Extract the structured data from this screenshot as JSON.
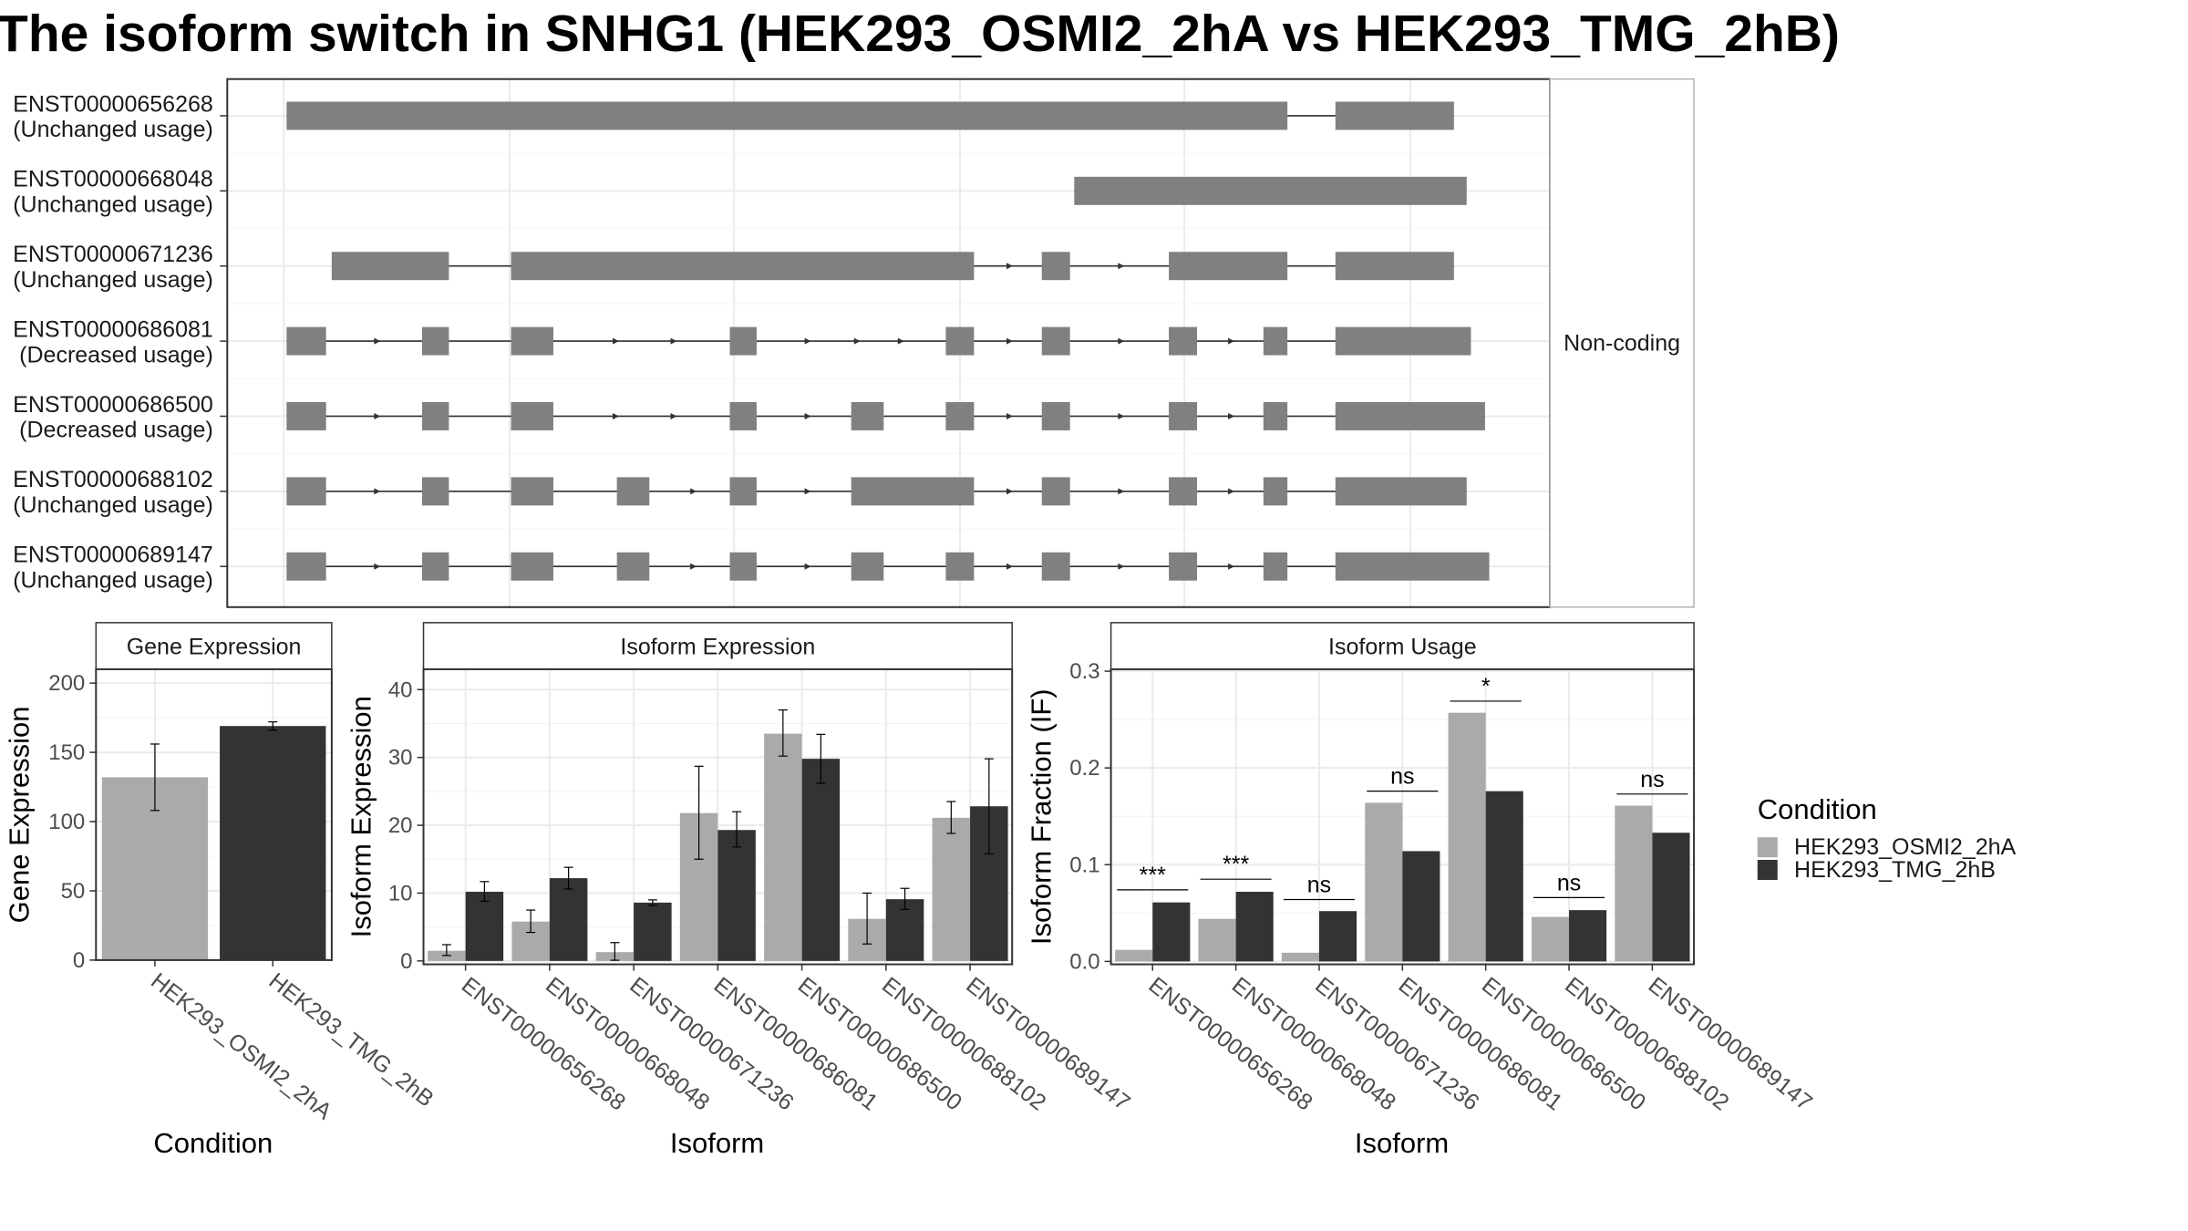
{
  "title": "The isoform switch in SNHG1 (HEK293_OSMI2_2hA vs HEK293_TMG_2hB)",
  "colors": {
    "exon": "#808080",
    "condition_a": "#aaaaaa",
    "condition_b": "#333333",
    "panel_border": "#333333",
    "grid": "#ebebeb",
    "strip_bg": "#ffffff"
  },
  "transcript_panel": {
    "strip_label": "Non-coding",
    "transcripts": [
      {
        "id": "ENST00000656268",
        "usage": "(Unchanged usage)",
        "exons": [
          [
            203,
            912
          ],
          [
            946,
            1030
          ]
        ],
        "arrows": []
      },
      {
        "id": "ENST00000668048",
        "usage": "(Unchanged usage)",
        "exons": [
          [
            761,
            1039
          ]
        ],
        "arrows": []
      },
      {
        "id": "ENST00000671236",
        "usage": "(Unchanged usage)",
        "exons": [
          [
            235,
            318
          ],
          [
            362,
            690
          ],
          [
            738,
            758
          ],
          [
            828,
            912
          ],
          [
            946,
            1030
          ]
        ],
        "arrows": [
          713,
          792
        ]
      },
      {
        "id": "ENST00000686081",
        "usage": "(Decreased usage)",
        "exons": [
          [
            203,
            231
          ],
          [
            299,
            318
          ],
          [
            362,
            392
          ],
          [
            517,
            536
          ],
          [
            670,
            690
          ],
          [
            738,
            758
          ],
          [
            828,
            848
          ],
          [
            895,
            912
          ],
          [
            946,
            1042
          ]
        ],
        "arrows": [
          265,
          434,
          475,
          570,
          605,
          636,
          713,
          792,
          870
        ]
      },
      {
        "id": "ENST00000686500",
        "usage": "(Decreased usage)",
        "exons": [
          [
            203,
            231
          ],
          [
            299,
            318
          ],
          [
            362,
            392
          ],
          [
            517,
            536
          ],
          [
            603,
            626
          ],
          [
            670,
            690
          ],
          [
            738,
            758
          ],
          [
            828,
            848
          ],
          [
            895,
            912
          ],
          [
            946,
            1052
          ]
        ],
        "arrows": [
          265,
          434,
          475,
          570,
          713,
          792,
          870
        ]
      },
      {
        "id": "ENST00000688102",
        "usage": "(Unchanged usage)",
        "exons": [
          [
            203,
            231
          ],
          [
            299,
            318
          ],
          [
            362,
            392
          ],
          [
            437,
            460
          ],
          [
            517,
            536
          ],
          [
            603,
            690
          ],
          [
            738,
            758
          ],
          [
            828,
            848
          ],
          [
            895,
            912
          ],
          [
            946,
            1039
          ]
        ],
        "arrows": [
          265,
          489,
          570,
          713,
          792,
          870
        ]
      },
      {
        "id": "ENST00000689147",
        "usage": "(Unchanged usage)",
        "exons": [
          [
            203,
            231
          ],
          [
            299,
            318
          ],
          [
            362,
            392
          ],
          [
            437,
            460
          ],
          [
            517,
            536
          ],
          [
            603,
            626
          ],
          [
            670,
            690
          ],
          [
            738,
            758
          ],
          [
            828,
            848
          ],
          [
            895,
            912
          ],
          [
            946,
            1055
          ]
        ],
        "arrows": [
          265,
          489,
          570,
          713,
          792,
          870
        ]
      }
    ]
  },
  "chart_data": [
    {
      "type": "bar",
      "strip_title": "Gene Expression",
      "xlabel": "Condition",
      "ylabel": "Gene Expression",
      "ylim": [
        0,
        210
      ],
      "yticks": [
        0,
        50,
        100,
        150,
        200
      ],
      "categories": [
        "HEK293_OSMI2_2hA",
        "HEK293_TMG_2hB"
      ],
      "series": [
        {
          "name": "HEK293_OSMI2_2hA",
          "values": [
            132,
            null
          ],
          "err_low": [
            108,
            null
          ],
          "err_high": [
            156,
            null
          ]
        },
        {
          "name": "HEK293_TMG_2hB",
          "values": [
            null,
            169
          ],
          "err_low": [
            null,
            166
          ],
          "err_high": [
            null,
            172
          ]
        }
      ]
    },
    {
      "type": "bar",
      "strip_title": "Isoform Expression",
      "xlabel": "Isoform",
      "ylabel": "Isoform Expression",
      "ylim": [
        -0.5,
        43
      ],
      "yticks": [
        0,
        10,
        20,
        30,
        40
      ],
      "categories": [
        "ENST00000656268",
        "ENST00000668048",
        "ENST00000671236",
        "ENST00000686081",
        "ENST00000686500",
        "ENST00000688102",
        "ENST00000689147"
      ],
      "series": [
        {
          "name": "HEK293_OSMI2_2hA",
          "values": [
            1.5,
            5.8,
            1.3,
            21.8,
            33.5,
            6.2,
            21.1
          ],
          "err_low": [
            0.8,
            4.2,
            0.1,
            15.0,
            30.2,
            2.5,
            18.8
          ],
          "err_high": [
            2.4,
            7.5,
            2.7,
            28.7,
            37.0,
            10.0,
            23.5
          ]
        },
        {
          "name": "HEK293_TMG_2hB",
          "values": [
            10.2,
            12.2,
            8.6,
            19.3,
            29.8,
            9.1,
            22.8
          ],
          "err_low": [
            8.8,
            10.6,
            8.2,
            16.8,
            26.2,
            7.6,
            15.8
          ],
          "err_high": [
            11.7,
            13.8,
            9.0,
            22.0,
            33.4,
            10.7,
            29.8
          ]
        }
      ]
    },
    {
      "type": "bar",
      "strip_title": "Isoform Usage",
      "xlabel": "Isoform",
      "ylabel": "Isoform Fraction (IF)",
      "ylim": [
        -0.003,
        0.302
      ],
      "yticks": [
        0.0,
        0.1,
        0.2,
        0.3
      ],
      "ytick_labels": [
        "0.0",
        "0.1",
        "0.2",
        "0.3"
      ],
      "categories": [
        "ENST00000656268",
        "ENST00000668048",
        "ENST00000671236",
        "ENST00000686081",
        "ENST00000686500",
        "ENST00000688102",
        "ENST00000689147"
      ],
      "series": [
        {
          "name": "HEK293_OSMI2_2hA",
          "values": [
            0.012,
            0.044,
            0.009,
            0.164,
            0.257,
            0.046,
            0.161
          ]
        },
        {
          "name": "HEK293_TMG_2hB",
          "values": [
            0.061,
            0.072,
            0.052,
            0.114,
            0.176,
            0.053,
            0.133
          ]
        }
      ],
      "significance": [
        {
          "label": "***",
          "y": 0.074
        },
        {
          "label": "***",
          "y": 0.085
        },
        {
          "label": "ns",
          "y": 0.064
        },
        {
          "label": "ns",
          "y": 0.176
        },
        {
          "label": "*",
          "y": 0.269
        },
        {
          "label": "ns",
          "y": 0.066
        },
        {
          "label": "ns",
          "y": 0.173
        }
      ]
    }
  ],
  "legend": {
    "title": "Condition",
    "items": [
      {
        "label": "HEK293_OSMI2_2hA",
        "color": "#aaaaaa"
      },
      {
        "label": "HEK293_TMG_2hB",
        "color": "#333333"
      }
    ]
  }
}
